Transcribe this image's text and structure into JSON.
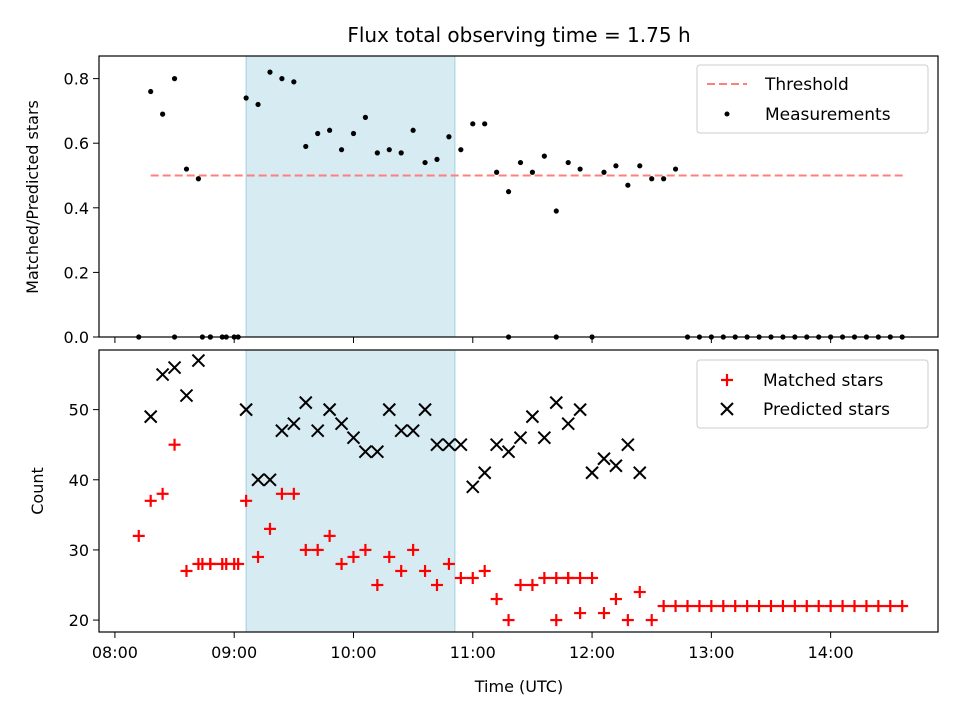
{
  "chart_data": [
    {
      "type": "scatter",
      "title": "Flux total observing time = 1.75 h",
      "ylabel": "Matched/Predicted stars",
      "xlabel": "",
      "xlim": [
        "07:52",
        "14:54"
      ],
      "ylim": [
        0,
        0.87
      ],
      "yticks": [
        "0.0",
        "0.2",
        "0.4",
        "0.6",
        "0.8"
      ],
      "ytick_values": [
        0,
        0.2,
        0.4,
        0.6,
        0.8
      ],
      "shaded_region": {
        "start": "09:06",
        "end": "10:51",
        "color": "#add8e6"
      },
      "legend": {
        "position": "top-right",
        "entries": [
          "Threshold",
          "Measurements"
        ]
      },
      "series": [
        {
          "name": "Threshold",
          "style": "dashed-line",
          "color": "#ff7f7f",
          "x": [
            "08:18",
            "14:37"
          ],
          "y": [
            0.5,
            0.5
          ]
        },
        {
          "name": "Measurements",
          "style": "dot",
          "color": "#000000",
          "x": [
            "08:12",
            "08:18",
            "08:24",
            "08:30",
            "08:36",
            "08:42",
            "08:48",
            "08:54",
            "09:00",
            "09:06",
            "09:12",
            "09:18",
            "09:24",
            "09:30",
            "09:36",
            "09:42",
            "09:48",
            "09:54",
            "10:00",
            "10:06",
            "10:12",
            "10:18",
            "10:24",
            "10:30",
            "10:36",
            "10:42",
            "10:48",
            "10:54",
            "11:00",
            "11:06",
            "11:12",
            "11:18",
            "11:24",
            "11:30",
            "11:36",
            "11:42",
            "11:48",
            "11:54",
            "12:00",
            "12:06",
            "12:12",
            "12:18",
            "12:24",
            "12:30",
            "12:36",
            "12:42",
            "12:48",
            "12:54",
            "13:00",
            "13:06",
            "13:12",
            "13:18",
            "13:24",
            "13:30",
            "13:36",
            "13:42",
            "13:48",
            "13:54",
            "14:00",
            "14:06",
            "14:12",
            "14:18",
            "14:24",
            "14:30",
            "14:36",
            "08:30",
            "08:44",
            "08:48",
            "08:56",
            "09:02",
            "11:18",
            "11:42"
          ],
          "y": [
            0.0,
            0.76,
            0.69,
            0.8,
            0.52,
            0.49,
            0.0,
            0.0,
            0.0,
            0.74,
            0.72,
            0.82,
            0.8,
            0.79,
            0.59,
            0.63,
            0.64,
            0.58,
            0.63,
            0.68,
            0.57,
            0.58,
            0.57,
            0.64,
            0.54,
            0.55,
            0.62,
            0.58,
            0.66,
            0.66,
            0.51,
            0.45,
            0.54,
            0.51,
            0.56,
            0.39,
            0.54,
            0.52,
            0.0,
            0.51,
            0.53,
            0.47,
            0.53,
            0.49,
            0.49,
            0.52,
            0.0,
            0.0,
            0.0,
            0.0,
            0.0,
            0.0,
            0.0,
            0.0,
            0.0,
            0.0,
            0.0,
            0.0,
            0.0,
            0.0,
            0.0,
            0.0,
            0.0,
            0.0,
            0.0,
            0.0,
            0.0,
            0.0,
            0.0,
            0.0,
            0.0,
            0.0
          ]
        }
      ]
    },
    {
      "type": "scatter",
      "title": "",
      "ylabel": "Count",
      "xlabel": "Time (UTC)",
      "xlim": [
        "07:52",
        "14:54"
      ],
      "ylim": [
        18.3,
        58.5
      ],
      "xticks": [
        "08:00",
        "09:00",
        "10:00",
        "11:00",
        "12:00",
        "13:00",
        "14:00"
      ],
      "yticks": [
        "20",
        "30",
        "40",
        "50"
      ],
      "ytick_values": [
        20,
        30,
        40,
        50
      ],
      "shaded_region": {
        "start": "09:06",
        "end": "10:51",
        "color": "#add8e6"
      },
      "legend": {
        "position": "top-right",
        "entries": [
          "Matched stars",
          "Predicted stars"
        ]
      },
      "series": [
        {
          "name": "Matched stars",
          "marker": "plus",
          "color": "#ff0000",
          "x": [
            "08:12",
            "08:18",
            "08:24",
            "08:30",
            "08:36",
            "08:42",
            "08:48",
            "08:54",
            "09:00",
            "09:06",
            "09:12",
            "09:18",
            "09:24",
            "09:30",
            "09:36",
            "09:42",
            "09:48",
            "09:54",
            "10:00",
            "10:06",
            "10:12",
            "10:18",
            "10:24",
            "10:30",
            "10:36",
            "10:42",
            "10:48",
            "10:54",
            "11:00",
            "11:06",
            "11:12",
            "11:18",
            "11:24",
            "11:30",
            "11:36",
            "11:42",
            "11:48",
            "11:54",
            "12:00",
            "12:06",
            "12:12",
            "12:18",
            "12:24",
            "12:30",
            "12:36",
            "12:42",
            "12:48",
            "12:54",
            "13:00",
            "13:06",
            "13:12",
            "13:18",
            "13:24",
            "13:30",
            "13:36",
            "13:42",
            "13:48",
            "13:54",
            "14:00",
            "14:06",
            "14:12",
            "14:18",
            "14:24",
            "14:30",
            "14:36",
            "08:44",
            "08:48",
            "08:56",
            "09:02",
            "11:42",
            "11:48",
            "11:54"
          ],
          "y": [
            32,
            37,
            38,
            45,
            27,
            28,
            28,
            28,
            28,
            37,
            29,
            33,
            38,
            38,
            30,
            30,
            32,
            28,
            29,
            30,
            25,
            29,
            27,
            30,
            27,
            25,
            28,
            26,
            26,
            27,
            23,
            20,
            25,
            25,
            26,
            20,
            26,
            26,
            26,
            21,
            23,
            20,
            24,
            20,
            22,
            22,
            22,
            22,
            22,
            22,
            22,
            22,
            22,
            22,
            22,
            22,
            22,
            22,
            22,
            22,
            22,
            22,
            22,
            22,
            22,
            28,
            28,
            28,
            28,
            26,
            26,
            21
          ]
        },
        {
          "name": "Predicted stars",
          "marker": "x",
          "color": "#000000",
          "x": [
            "08:18",
            "08:24",
            "08:30",
            "08:36",
            "08:42",
            "09:06",
            "09:12",
            "09:18",
            "09:24",
            "09:30",
            "09:36",
            "09:42",
            "09:48",
            "09:54",
            "10:00",
            "10:06",
            "10:12",
            "10:18",
            "10:24",
            "10:30",
            "10:36",
            "10:42",
            "10:48",
            "10:54",
            "11:00",
            "11:06",
            "11:12",
            "11:18",
            "11:24",
            "11:30",
            "11:36",
            "11:42",
            "11:48",
            "11:54",
            "12:00",
            "12:06",
            "12:12",
            "12:18",
            "12:24"
          ],
          "y": [
            49,
            55,
            56,
            52,
            57,
            50,
            40,
            40,
            47,
            48,
            51,
            47,
            50,
            48,
            46,
            44,
            44,
            50,
            47,
            47,
            50,
            45,
            45,
            45,
            39,
            41,
            45,
            44,
            46,
            49,
            46,
            51,
            48,
            50,
            41,
            43,
            42,
            45,
            41
          ]
        }
      ]
    }
  ]
}
